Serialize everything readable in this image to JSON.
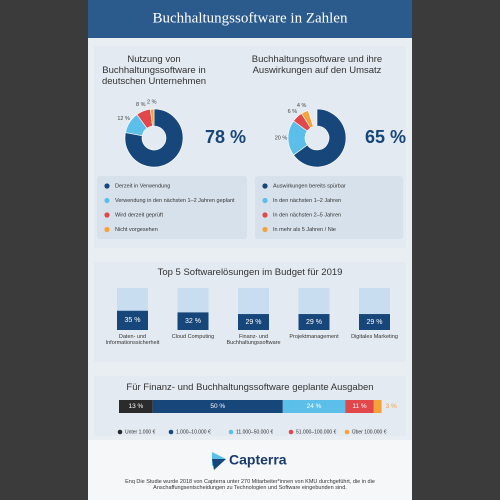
{
  "title": "Buchhaltungssoftware in Zahlen",
  "chart_data": [
    {
      "type": "pie",
      "title": "Nutzung von Buchhaltungssoftware in deutschen Unternehmen",
      "categories": [
        "Derzeit in Verwendung",
        "Verwendung in den nächsten 1–2 Jahren geplant",
        "Wird derzeit geprüft",
        "Nicht vorgesehen"
      ],
      "values": [
        78,
        12,
        8,
        2
      ],
      "value_labels": [
        "78 %",
        "12 %",
        "8 %",
        "2 %"
      ],
      "colors": [
        "#17467a",
        "#5bbfe9",
        "#e2474b",
        "#f5a23a"
      ]
    },
    {
      "type": "pie",
      "title": "Buchhaltungssoftware und ihre Auswirkungen auf den Umsatz",
      "categories": [
        "Auswirkungen bereits spürbar",
        "In den nächsten 1–2 Jahren",
        "In den nächsten 2–5 Jahren",
        "In mehr als 5 Jahren / Nie"
      ],
      "values": [
        65,
        20,
        6,
        4
      ],
      "value_labels": [
        "65 %",
        "20 %",
        "6 %",
        "4 %"
      ],
      "colors": [
        "#17467a",
        "#5bbfe9",
        "#e2474b",
        "#f5a23a"
      ]
    },
    {
      "type": "bar",
      "title": "Top 5 Softwarelösungen im Budget für 2019",
      "categories": [
        "Daten- und Informationssicherheit",
        "Cloud Computing",
        "Finanz- und Buchhaltungssoftware",
        "Projektmanagement",
        "Digitales Marketing"
      ],
      "values": [
        35,
        32,
        29,
        29,
        29
      ],
      "value_labels": [
        "35 %",
        "32 %",
        "29 %",
        "29 %",
        "29 %"
      ],
      "color": "#17467a"
    },
    {
      "type": "stacked-bar",
      "title": "Für Finanz- und Buchhaltungssoftware geplante Ausgaben",
      "series": [
        {
          "name": "Unter 1.000 €",
          "color": "#2b2b2b",
          "values": [
            13
          ],
          "value_labels": [
            "13 %"
          ]
        },
        {
          "name": "1.000–10.000 €",
          "color": "#17467a",
          "values": [
            50
          ],
          "value_labels": [
            "50 %"
          ]
        },
        {
          "name": "11.000–50.000 €",
          "color": "#5bbfe9",
          "values": [
            24
          ],
          "value_labels": [
            "24 %"
          ]
        },
        {
          "name": "51.000–100.000 €",
          "color": "#e2474b",
          "values": [
            11
          ],
          "value_labels": [
            "11 %"
          ]
        },
        {
          "name": "Über 100.000 €",
          "color": "#f5a23a",
          "values": [
            3
          ],
          "value_labels": [
            "3 %"
          ]
        }
      ]
    }
  ],
  "footer": {
    "logo": "Capterra",
    "note": "Enq Die Studie wurde 2018 von Capterra unter 270 Mitarbeiter*innen von KMU durchgeführt, die in die Anschaffungsentscheidungen zu Technologien und Software eingebunden sind."
  }
}
